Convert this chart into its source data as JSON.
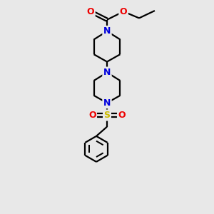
{
  "bg_color": "#e8e8e8",
  "atom_colors": {
    "C": "#000000",
    "N": "#0000dd",
    "O": "#ee0000",
    "S": "#ccbb00"
  },
  "figsize": [
    3.0,
    3.0
  ],
  "dpi": 100,
  "xlim": [
    0,
    10
  ],
  "ylim": [
    0,
    13
  ],
  "bond_lw": 1.6,
  "font_size": 8.5
}
